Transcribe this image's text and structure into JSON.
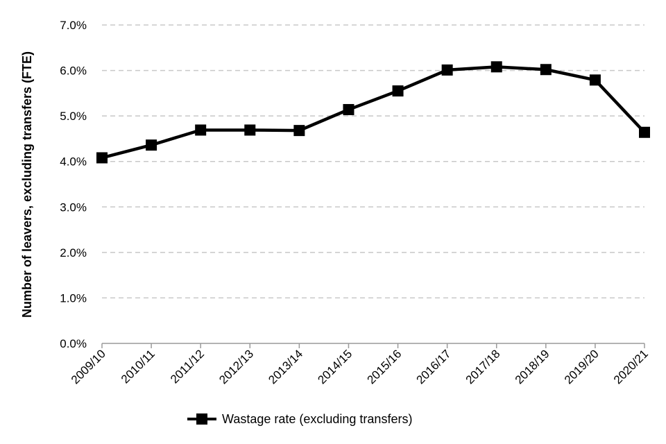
{
  "chart_data": {
    "type": "line",
    "title": "",
    "xlabel": "",
    "ylabel": "Number of leavers, excluding transfers (FTE)",
    "categories": [
      "2009/10",
      "2010/11",
      "2011/12",
      "2012/13",
      "2013/14",
      "2014/15",
      "2015/16",
      "2016/17",
      "2017/18",
      "2018/19",
      "2019/20",
      "2020/21"
    ],
    "series": [
      {
        "name": "Wastage rate (excluding transfers)",
        "values": [
          4.08,
          4.36,
          4.69,
          4.69,
          4.68,
          5.14,
          5.55,
          6.01,
          6.08,
          6.02,
          5.79,
          4.64
        ],
        "color": "#000000",
        "marker": "square"
      }
    ],
    "ylim": [
      0,
      7
    ],
    "yticks": [
      0,
      1,
      2,
      3,
      4,
      5,
      6,
      7
    ],
    "ytick_labels": [
      "0.0%",
      "1.0%",
      "2.0%",
      "3.0%",
      "4.0%",
      "5.0%",
      "6.0%",
      "7.0%"
    ],
    "grid": "horizontal-dashed",
    "legend_position": "bottom"
  }
}
